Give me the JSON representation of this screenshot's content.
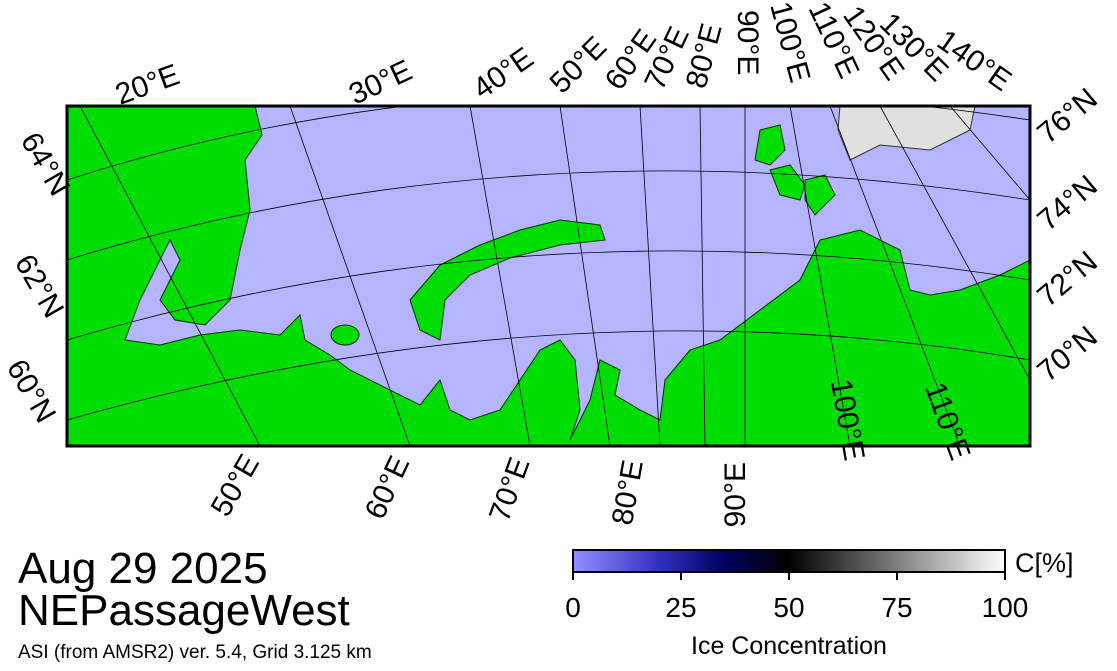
{
  "date": "Aug 29 2025",
  "region": "NEPassageWest",
  "source": "ASI (from AMSR2) ver. 5.4,  Grid 3.125 km",
  "top_lon_labels": [
    "20°E",
    "30°E",
    "40°E",
    "50°E",
    "60°E",
    "70°E",
    "80°E",
    "90°E",
    "100°E",
    "110°E",
    "120°E",
    "130°E",
    "140°E"
  ],
  "bottom_lon_labels": [
    "50°E",
    "60°E",
    "70°E",
    "80°E",
    "90°E",
    "100°E",
    "110°E"
  ],
  "left_lat_labels": [
    "64°N",
    "62°N",
    "60°N"
  ],
  "right_lat_labels": [
    "76°N",
    "74°N",
    "72°N",
    "70°N"
  ],
  "colorbar": {
    "unit": "C[%]",
    "title": "Ice Concentration",
    "lim": [
      0,
      100
    ],
    "ticks": [
      0,
      25,
      50,
      75,
      100
    ]
  }
}
